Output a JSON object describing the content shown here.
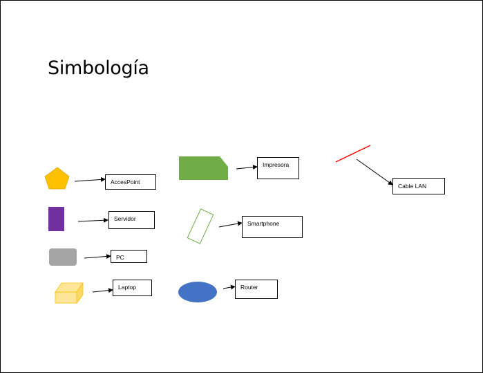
{
  "title": "Simbología",
  "colors": {
    "accespoint": "#FFC000",
    "servidor": "#7030A0",
    "pc": "#A5A5A5",
    "laptop_fill": "#FFE699",
    "laptop_stroke": "#FFC000",
    "impresora": "#70AD47",
    "smartphone_stroke": "#70AD47",
    "router": "#4472C4",
    "cable_lan": "#FF0000"
  },
  "labels": {
    "accespoint": "AccesPoint",
    "servidor": "Servidor",
    "pc": "PC",
    "laptop": "Laptop",
    "impresora": "Impresora",
    "smartphone": "Smartphone",
    "router": "Router",
    "cable_lan": "Cable LAN"
  }
}
